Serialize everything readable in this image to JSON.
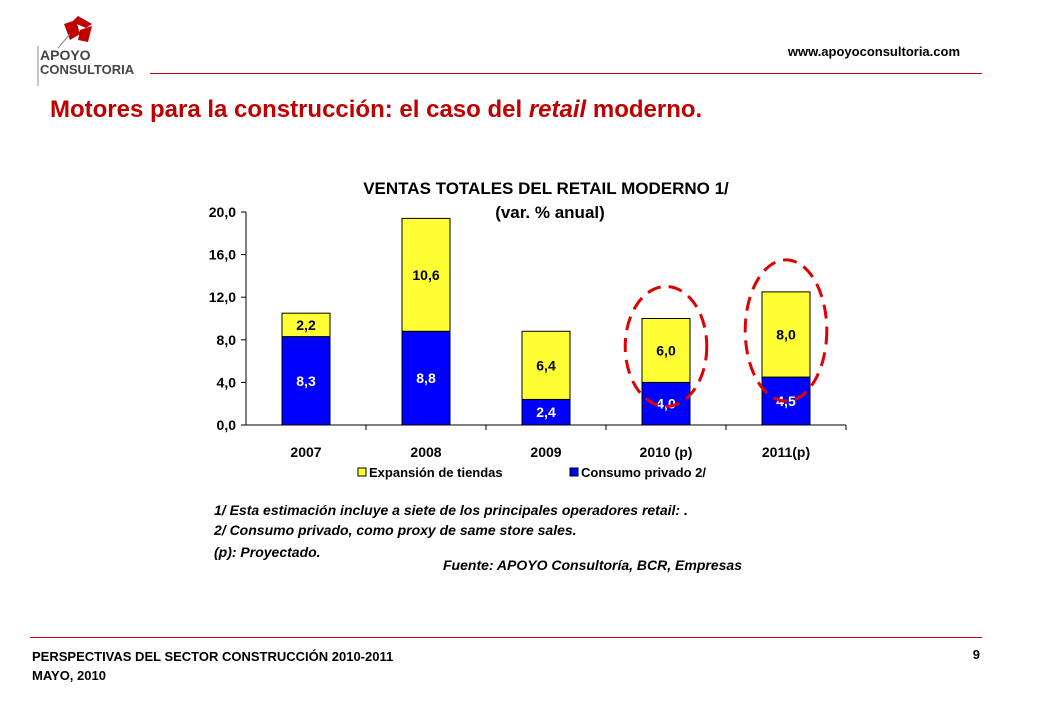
{
  "header": {
    "logo_line1": "APOYO",
    "logo_line2": "CONSULTORIA",
    "url": "www.apoyoconsultoria.com"
  },
  "title": {
    "part1": "Motores para la construcción: el caso del ",
    "italic": "retail",
    "part2": " moderno."
  },
  "chart_data": {
    "type": "bar",
    "stacked": true,
    "title": "VENTAS TOTALES DEL RETAIL MODERNO 1/",
    "subtitle": "(var. % anual)",
    "categories": [
      "2007",
      "2008",
      "2009",
      "2010 (p)",
      "2011(p)"
    ],
    "series": [
      {
        "name": "Consumo privado 2/",
        "color": "#0000ff",
        "values": [
          8.3,
          8.8,
          2.4,
          4.0,
          4.5
        ],
        "labels": [
          "8,3",
          "8,8",
          "2,4",
          "4,0",
          "4,5"
        ]
      },
      {
        "name": "Expansión de tiendas",
        "color": "#ffff33",
        "values": [
          2.2,
          10.6,
          6.4,
          6.0,
          8.0
        ],
        "labels": [
          "2,2",
          "10,6",
          "6,4",
          "6,0",
          "8,0"
        ]
      }
    ],
    "ylim": [
      0,
      20
    ],
    "yticks": [
      "0,0",
      "4,0",
      "8,0",
      "12,0",
      "16,0",
      "20,0"
    ],
    "ytick_values": [
      0,
      4,
      8,
      12,
      16,
      20
    ],
    "legend_position": "bottom",
    "highlighted_categories": [
      "2010 (p)",
      "2011(p)"
    ],
    "highlight_color": "#e00000"
  },
  "notes": {
    "n1": "1/ Esta estimación incluye a siete de los principales operadores retail: .",
    "n2": "2/ Consumo privado, como proxy de same store sales.",
    "n3": "(p): Proyectado."
  },
  "source": "Fuente: APOYO Consultoría, BCR, Empresas",
  "footer": {
    "line1": "PERSPECTIVAS DEL SECTOR CONSTRUCCIÓN 2010-2011",
    "line2": "MAYO, 2010",
    "page": "9"
  }
}
